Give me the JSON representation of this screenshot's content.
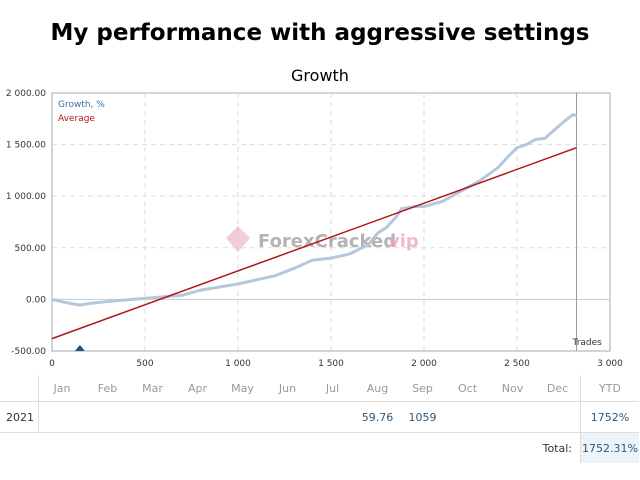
{
  "title": "My performance with aggressive settings",
  "watermark": "ForexCrackedvip",
  "chart_data": {
    "type": "line",
    "title": "Growth",
    "xlabel": "Trades",
    "ylabel": "",
    "xlim": [
      0,
      3000
    ],
    "ylim": [
      -500,
      2000
    ],
    "xticks": [
      "0",
      "500",
      "1 000",
      "1 500",
      "2 000",
      "2 500",
      "3 000"
    ],
    "xtick_values": [
      0,
      500,
      1000,
      1500,
      2000,
      2500,
      3000
    ],
    "yticks": [
      "2 000.00",
      "1 500.00",
      "1 000.00",
      "500.00",
      "0.00",
      "-500.00"
    ],
    "ytick_values": [
      2000,
      1500,
      1000,
      500,
      0,
      -500
    ],
    "grid": true,
    "legend": [
      "Growth, %",
      "Average"
    ],
    "legend_placement": "top-left",
    "current_trade": 2820,
    "marker_trade": 150,
    "series": [
      {
        "name": "Growth, %",
        "color": "#b4c8dc",
        "x": [
          0,
          100,
          150,
          200,
          300,
          500,
          700,
          800,
          1000,
          1200,
          1300,
          1400,
          1500,
          1600,
          1700,
          1750,
          1800,
          1850,
          1880,
          1950,
          2000,
          2100,
          2200,
          2300,
          2400,
          2450,
          2500,
          2550,
          2600,
          2650,
          2700,
          2750,
          2800,
          2820
        ],
        "y": [
          0,
          -40,
          -55,
          -40,
          -20,
          10,
          40,
          90,
          150,
          230,
          300,
          380,
          400,
          440,
          530,
          640,
          700,
          800,
          880,
          900,
          900,
          950,
          1050,
          1150,
          1280,
          1380,
          1470,
          1500,
          1550,
          1560,
          1640,
          1720,
          1790,
          1780
        ]
      },
      {
        "name": "Average",
        "color": "#b01818",
        "x": [
          0,
          2820
        ],
        "y": [
          -380,
          1470
        ]
      }
    ]
  },
  "table": {
    "months": [
      "Jan",
      "Feb",
      "Mar",
      "Apr",
      "May",
      "Jun",
      "Jul",
      "Aug",
      "Sep",
      "Oct",
      "Nov",
      "Dec"
    ],
    "ytd_label": "YTD",
    "rows": [
      {
        "year": "2021",
        "values": [
          "",
          "",
          "",
          "",
          "",
          "",
          "",
          "59.76",
          "1059",
          "",
          "",
          ""
        ],
        "ytd": "1752%"
      }
    ],
    "total_label": "Total:",
    "total_value": "1752.31%"
  }
}
